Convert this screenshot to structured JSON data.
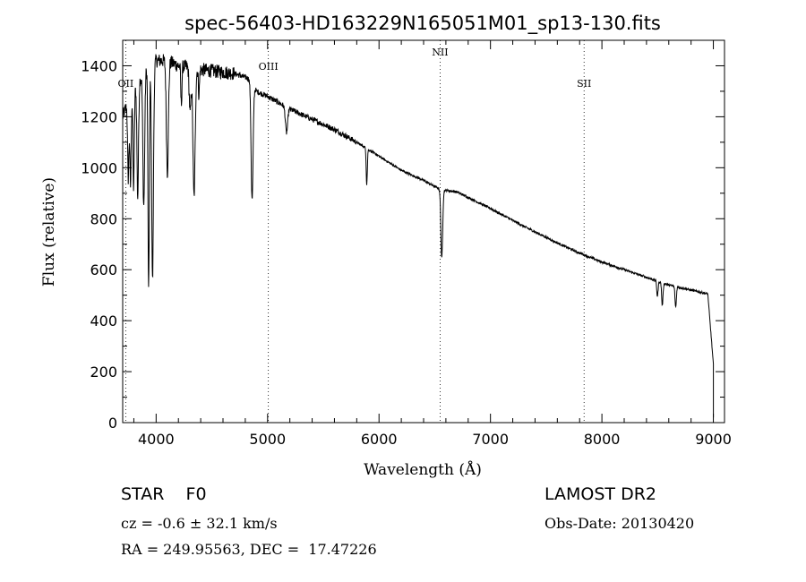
{
  "chart_data": {
    "type": "line",
    "title": "spec-56403-HD163229N165051M01_sp13-130.fits",
    "xlabel": "Wavelength (Å)",
    "ylabel": "Flux (relative)",
    "xlim": [
      3700,
      9100
    ],
    "ylim": [
      0,
      1500
    ],
    "xticks": [
      4000,
      5000,
      6000,
      7000,
      8000,
      9000
    ],
    "yticks": [
      0,
      200,
      400,
      600,
      800,
      1000,
      1200,
      1400
    ],
    "grid": false,
    "line_color": "#000000",
    "lines": [
      {
        "label": "OII",
        "x": 3727
      },
      {
        "label": "OIII",
        "x": 5007
      },
      {
        "label": "NII",
        "x": 6548
      },
      {
        "label": "SII",
        "x": 7840
      }
    ],
    "continuum": {
      "x": [
        3700,
        3760,
        3830,
        3900,
        4000,
        4100,
        4200,
        4300,
        4400,
        4500,
        4600,
        4700,
        4800,
        4850,
        4900,
        5000,
        5200,
        5400,
        5600,
        5800,
        6000,
        6200,
        6400,
        6550,
        6700,
        7000,
        7300,
        7600,
        7800,
        8000,
        8200,
        8400,
        8600,
        8800,
        8950,
        9000
      ],
      "y": [
        1200,
        1270,
        1330,
        1380,
        1420,
        1420,
        1400,
        1395,
        1385,
        1380,
        1375,
        1370,
        1355,
        1345,
        1300,
        1280,
        1230,
        1190,
        1150,
        1100,
        1045,
        990,
        950,
        915,
        905,
        840,
        770,
        705,
        665,
        630,
        600,
        570,
        540,
        520,
        505,
        230
      ]
    },
    "absorption_features": [
      {
        "x": 3750,
        "depth": 300,
        "width": 6
      },
      {
        "x": 3770,
        "depth": 350,
        "width": 6
      },
      {
        "x": 3798,
        "depth": 380,
        "width": 6
      },
      {
        "x": 3835,
        "depth": 450,
        "width": 7
      },
      {
        "x": 3889,
        "depth": 520,
        "width": 8
      },
      {
        "x": 3933,
        "depth": 880,
        "width": 6
      },
      {
        "x": 3968,
        "depth": 850,
        "width": 8
      },
      {
        "x": 4101,
        "depth": 440,
        "width": 9
      },
      {
        "x": 4226,
        "depth": 150,
        "width": 5
      },
      {
        "x": 4305,
        "depth": 180,
        "width": 8
      },
      {
        "x": 4340,
        "depth": 500,
        "width": 10
      },
      {
        "x": 4384,
        "depth": 100,
        "width": 5
      },
      {
        "x": 4861,
        "depth": 460,
        "width": 9
      },
      {
        "x": 5170,
        "depth": 100,
        "width": 10
      },
      {
        "x": 5890,
        "depth": 140,
        "width": 5
      },
      {
        "x": 6563,
        "depth": 270,
        "width": 8
      },
      {
        "x": 8498,
        "depth": 60,
        "width": 6
      },
      {
        "x": 8542,
        "depth": 90,
        "width": 6
      },
      {
        "x": 8662,
        "depth": 80,
        "width": 6
      }
    ]
  },
  "info": {
    "object": "STAR    F0",
    "survey": "LAMOST DR2",
    "cz": "cz = -0.6 ± 32.1 km/s",
    "obs_date": "Obs-Date: 20130420",
    "coords": "RA = 249.95563, DEC =  17.47226"
  }
}
